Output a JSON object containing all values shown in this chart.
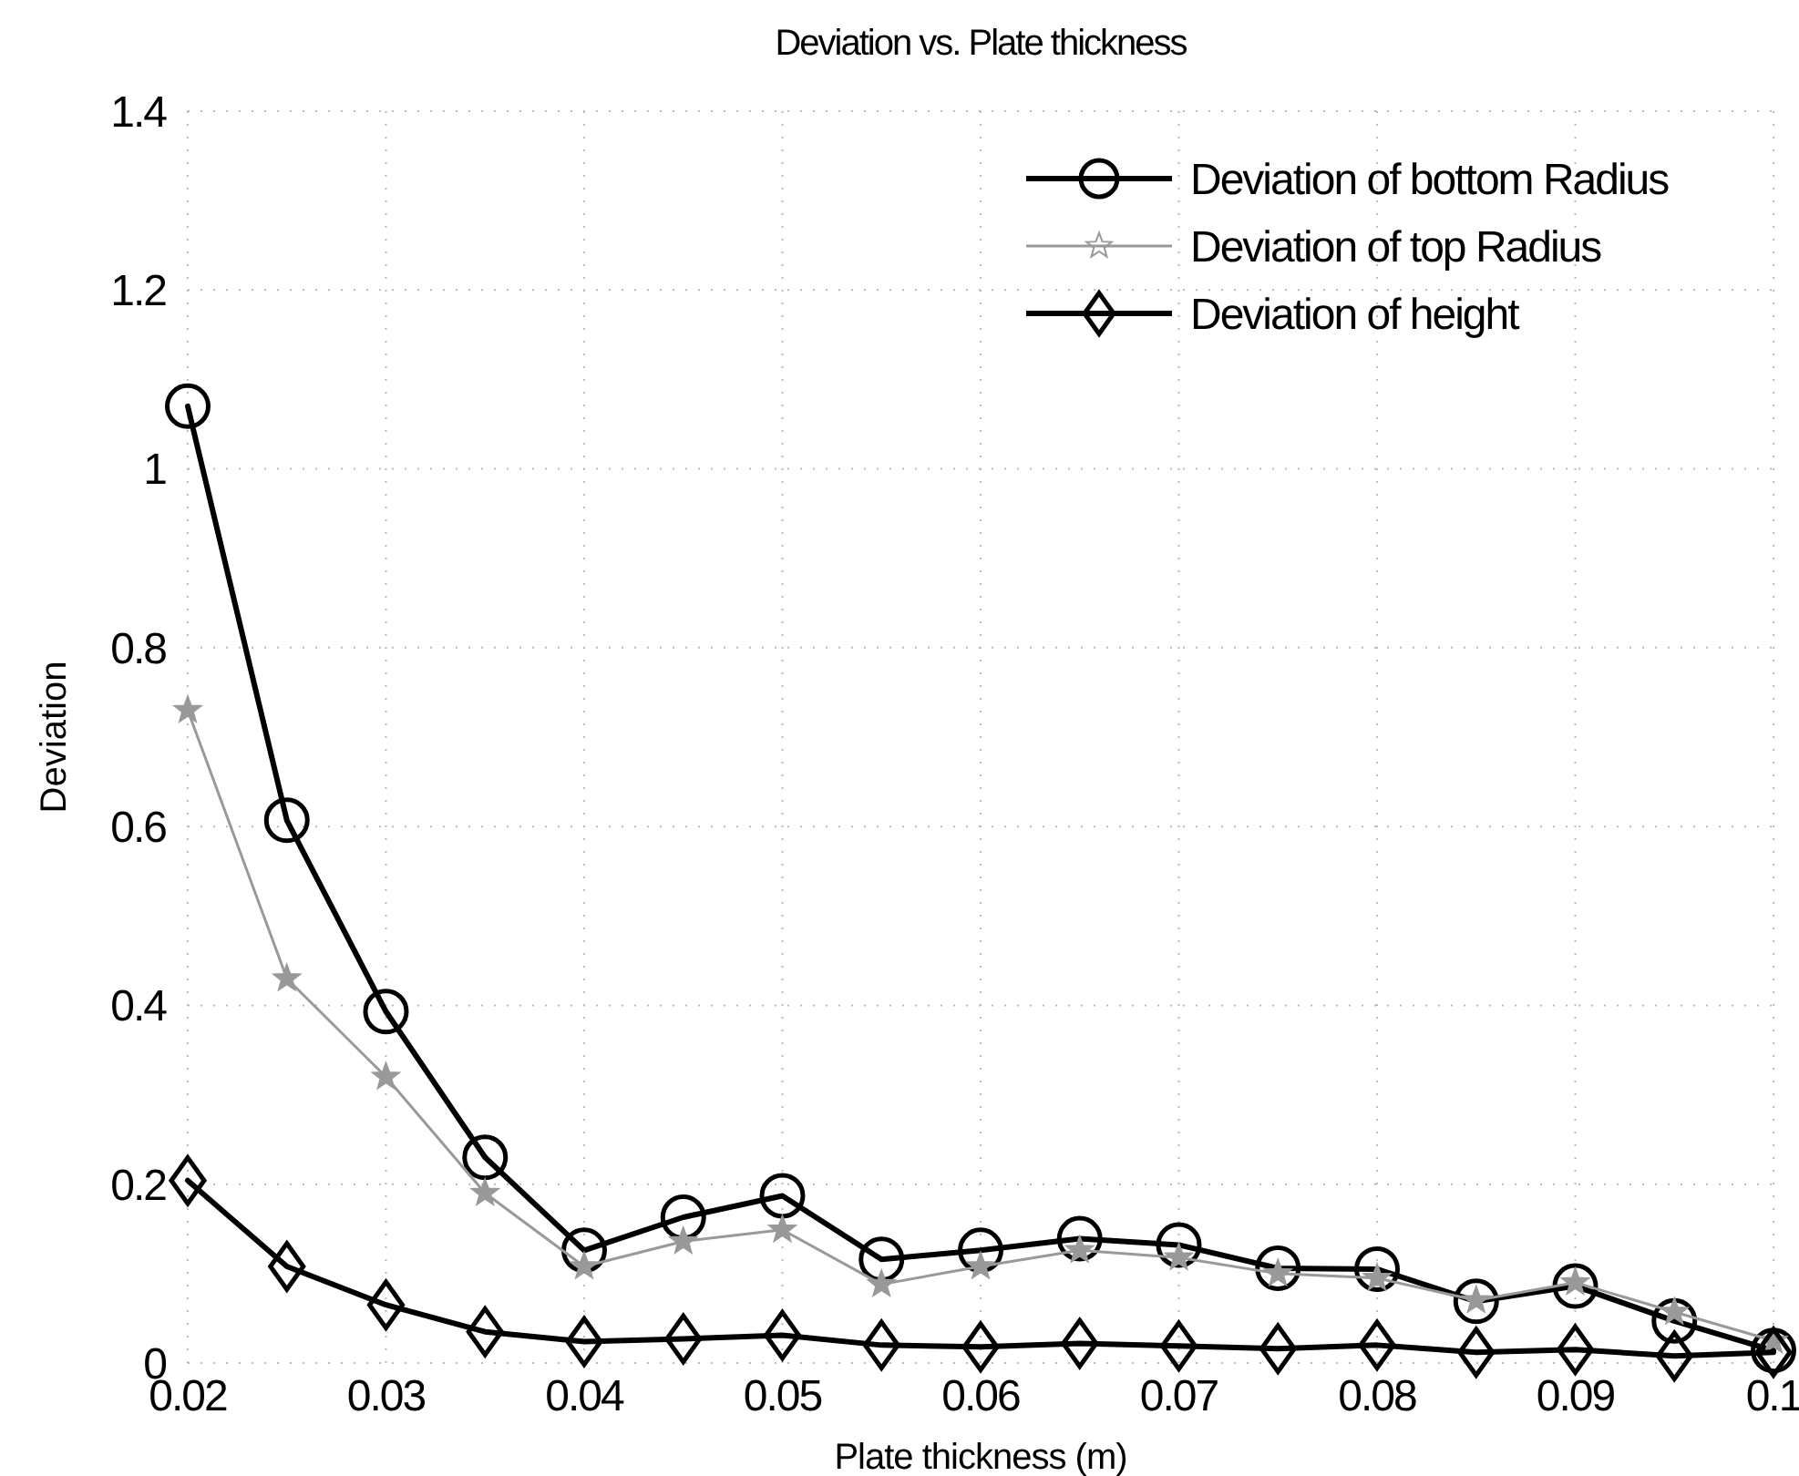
{
  "chart_data": {
    "type": "line",
    "title": "Deviation vs. Plate thickness",
    "xlabel": "Plate thickness (m)",
    "ylabel": "Deviation",
    "x": [
      0.02,
      0.025,
      0.03,
      0.035,
      0.04,
      0.045,
      0.05,
      0.055,
      0.06,
      0.065,
      0.07,
      0.075,
      0.08,
      0.085,
      0.09,
      0.095,
      0.1
    ],
    "series": [
      {
        "name": "Deviation of bottom Radius",
        "color": "#000000",
        "marker": "circle",
        "values": [
          1.07,
          0.607,
          0.393,
          0.23,
          0.126,
          0.163,
          0.187,
          0.116,
          0.126,
          0.139,
          0.132,
          0.106,
          0.105,
          0.069,
          0.086,
          0.047,
          0.014
        ]
      },
      {
        "name": "Deviation of top Radius",
        "color": "#999999",
        "marker": "star",
        "values": [
          0.73,
          0.43,
          0.32,
          0.19,
          0.108,
          0.136,
          0.149,
          0.088,
          0.108,
          0.126,
          0.118,
          0.1,
          0.095,
          0.07,
          0.09,
          0.057,
          0.025
        ]
      },
      {
        "name": "Deviation of height",
        "color": "#000000",
        "marker": "diamond",
        "values": [
          0.204,
          0.108,
          0.065,
          0.035,
          0.024,
          0.027,
          0.031,
          0.02,
          0.018,
          0.022,
          0.019,
          0.016,
          0.02,
          0.012,
          0.015,
          0.008,
          0.012
        ]
      }
    ],
    "xlim": [
      0.02,
      0.1
    ],
    "xticks": [
      0.02,
      0.03,
      0.04,
      0.05,
      0.06,
      0.07,
      0.08,
      0.09,
      0.1
    ],
    "ylim": [
      0,
      1.4
    ],
    "yticks": [
      0,
      0.2,
      0.4,
      0.6,
      0.8,
      1,
      1.2,
      1.4
    ],
    "grid": true,
    "legend": "top right",
    "line_style": "solid"
  }
}
